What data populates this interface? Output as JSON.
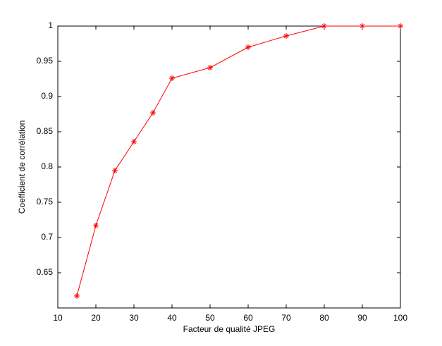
{
  "chart_data": {
    "type": "line",
    "x_label": "Facteur de qualité JPEG",
    "y_label": "Coefficient de corrélation",
    "x": [
      15,
      20,
      25,
      30,
      35,
      40,
      50,
      60,
      70,
      80,
      90,
      100
    ],
    "series": [
      {
        "color": "#ff0000",
        "values": [
          0.617,
          0.717,
          0.795,
          0.836,
          0.877,
          0.926,
          0.941,
          0.97,
          0.986,
          1,
          1,
          1
        ]
      }
    ],
    "xlim": [
      10,
      100
    ],
    "xticks": [
      10,
      20,
      30,
      40,
      50,
      60,
      70,
      80,
      90,
      100
    ],
    "ylim": [
      0.6,
      1
    ],
    "yticks": [
      0.65,
      0.7,
      0.75,
      0.8,
      0.85,
      0.9,
      0.95,
      1
    ],
    "marker": "asterisk"
  }
}
